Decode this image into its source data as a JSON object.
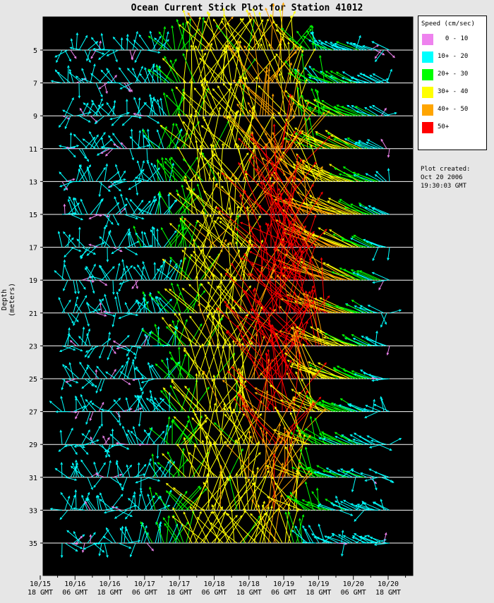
{
  "chart_data": {
    "type": "stick",
    "title": "Ocean Current Stick Plot for Station 41012",
    "ylabel": "Depth (meters)",
    "depths": [
      5,
      7,
      9,
      11,
      13,
      15,
      17,
      19,
      21,
      23,
      25,
      27,
      29,
      31,
      33,
      35
    ],
    "ylim": [
      3,
      37.5
    ],
    "x_ticks": [
      {
        "date": "10/15",
        "time": "18 GMT"
      },
      {
        "date": "10/16",
        "time": "06 GMT"
      },
      {
        "date": "10/16",
        "time": "18 GMT"
      },
      {
        "date": "10/17",
        "time": "06 GMT"
      },
      {
        "date": "10/17",
        "time": "18 GMT"
      },
      {
        "date": "10/18",
        "time": "06 GMT"
      },
      {
        "date": "10/18",
        "time": "18 GMT"
      },
      {
        "date": "10/19",
        "time": "06 GMT"
      },
      {
        "date": "10/19",
        "time": "18 GMT"
      },
      {
        "date": "10/20",
        "time": "06 GMT"
      },
      {
        "date": "10/20",
        "time": "18 GMT"
      }
    ],
    "legend": {
      "title": "Speed (cm/sec)",
      "entries": [
        {
          "label": "  0 - 10",
          "color": "#ee82ee"
        },
        {
          "label": "10+ - 20",
          "color": "#00ffff"
        },
        {
          "label": "20+ - 30",
          "color": "#00ff00"
        },
        {
          "label": "30+ - 40",
          "color": "#ffff00"
        },
        {
          "label": "40+ - 50",
          "color": "#ffa500"
        },
        {
          "label": "50+",
          "color": "#ff0000"
        }
      ]
    },
    "background": "#000000",
    "baseline_color": "#ffffff",
    "grid": false
  },
  "created": {
    "label": "Plot created:",
    "date": "Oct 20 2006",
    "time": "19:30:03 GMT"
  }
}
